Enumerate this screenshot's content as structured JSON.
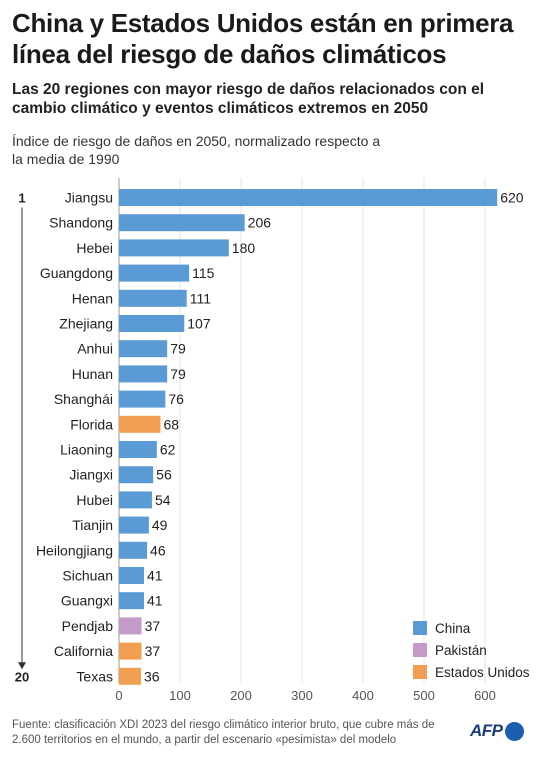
{
  "header": {
    "title": "China y Estados Unidos están en primera línea del riesgo de daños climáticos",
    "subtitle": "Las 20 regiones con mayor riesgo de daños relacionados con el cambio climático y eventos climáticos extremos  en 2050",
    "axis_description": "Índice de riesgo de daños en 2050, normalizado respecto a la media de 1990"
  },
  "footer": {
    "source": "Fuente: clasificación XDI 2023 del riesgo climático interior bruto, que cubre más de 2.600 territorios en el mundo, a partir del escenario «pesimista» del modelo",
    "logo": "AFP"
  },
  "colors": {
    "China": "#5b9bd5",
    "Pakistán": "#c49ac9",
    "Estados Unidos": "#f0a050"
  },
  "chart_data": {
    "type": "bar",
    "orientation": "horizontal",
    "rank_labels": [
      "1",
      "20"
    ],
    "categories": [
      "Jiangsu",
      "Shandong",
      "Hebei",
      "Guangdong",
      "Henan",
      "Zhejiang",
      "Anhui",
      "Hunan",
      "Shanghái",
      "Florida",
      "Liaoning",
      "Jiangxi",
      "Hubei",
      "Tianjin",
      "Heilongjiang",
      "Sichuan",
      "Guangxi",
      "Pendjab",
      "California",
      "Texas"
    ],
    "values": [
      620,
      206,
      180,
      115,
      111,
      107,
      79,
      79,
      76,
      68,
      62,
      56,
      54,
      49,
      46,
      41,
      41,
      37,
      37,
      36
    ],
    "groups": [
      "China",
      "China",
      "China",
      "China",
      "China",
      "China",
      "China",
      "China",
      "China",
      "Estados Unidos",
      "China",
      "China",
      "China",
      "China",
      "China",
      "China",
      "China",
      "Pakistán",
      "Estados Unidos",
      "Estados Unidos"
    ],
    "legend": [
      "China",
      "Pakistán",
      "Estados Unidos"
    ],
    "legend_position": "bottom-right",
    "xlim": [
      0,
      620
    ],
    "xticks": [
      0,
      100,
      200,
      300,
      400,
      500,
      600
    ],
    "grid": true
  }
}
